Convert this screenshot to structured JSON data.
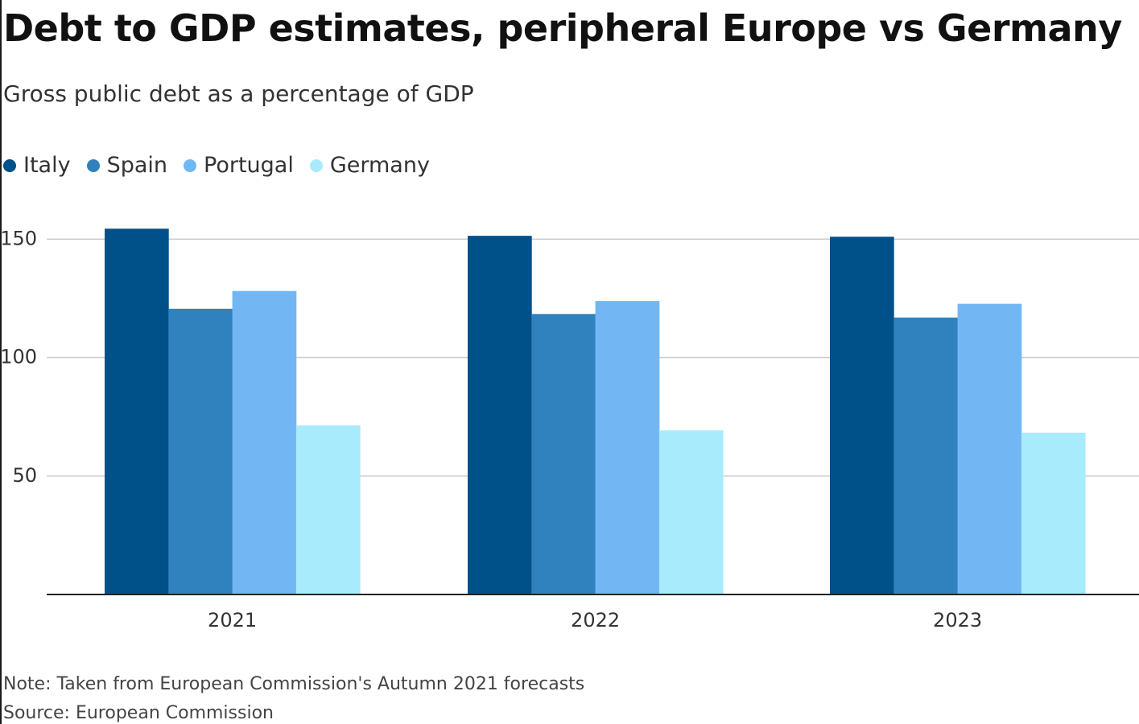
{
  "title": "Debt to GDP estimates, peripheral Europe vs Germany",
  "subtitle": "Gross public debt as a percentage of GDP",
  "note": "Note: Taken from European Commission's Autumn 2021 forecasts",
  "source": "Source: European Commission",
  "legend": [
    {
      "label": "Italy",
      "color": "#00508a"
    },
    {
      "label": "Spain",
      "color": "#3082bf"
    },
    {
      "label": "Portugal",
      "color": "#72b7f4"
    },
    {
      "label": "Germany",
      "color": "#a8ebfc"
    }
  ],
  "chart_data": {
    "type": "bar",
    "title": "Debt to GDP estimates, peripheral Europe vs Germany",
    "subtitle": "Gross public debt as a percentage of GDP",
    "xlabel": "",
    "ylabel": "",
    "categories": [
      "2021",
      "2022",
      "2023"
    ],
    "series": [
      {
        "name": "Italy",
        "color": "#00508a",
        "values": [
          154.4,
          151.4,
          151.0
        ]
      },
      {
        "name": "Spain",
        "color": "#3082bf",
        "values": [
          120.6,
          118.4,
          116.9
        ]
      },
      {
        "name": "Portugal",
        "color": "#72b7f4",
        "values": [
          128.1,
          123.9,
          122.7
        ]
      },
      {
        "name": "Germany",
        "color": "#a8ebfc",
        "values": [
          71.4,
          69.3,
          68.3
        ]
      }
    ],
    "ylim": [
      0,
      160
    ],
    "yticks": [
      50,
      100,
      150
    ],
    "ytick_labels": [
      "50",
      "100",
      "150"
    ],
    "grid": true,
    "legend_position": "top-left"
  }
}
